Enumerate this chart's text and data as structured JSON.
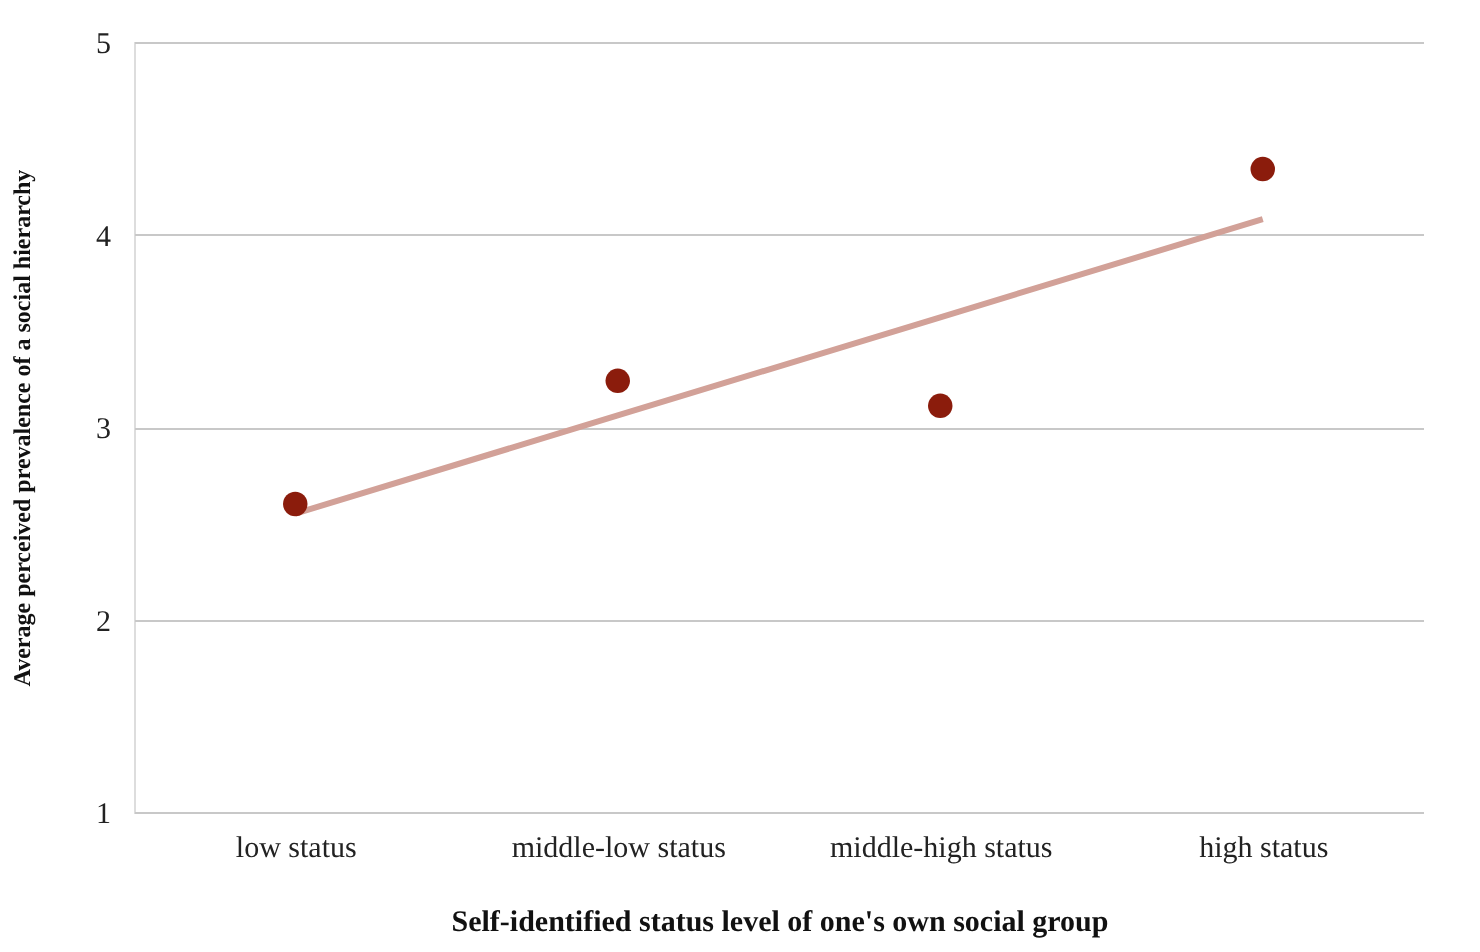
{
  "chart_data": {
    "type": "scatter",
    "xlabel": "Self-identified status level of one's own social group",
    "ylabel": "Average perceived prevalence of a social hierarchy",
    "categories": [
      "low status",
      "middle-low status",
      "middle-high status",
      "high status"
    ],
    "series": [
      {
        "color": "#8b1c0c",
        "marker": "circle",
        "values": [
          2.6,
          3.24,
          3.11,
          4.34
        ]
      },
      {
        "type": "line",
        "color": "#d2a198",
        "marker": "none",
        "values": [
          2.55,
          3.06,
          3.57,
          4.08
        ]
      }
    ],
    "ylim": [
      1,
      5
    ],
    "yticks": [
      1,
      2,
      3,
      4,
      5
    ],
    "grid": "y",
    "line_style": "solid"
  }
}
